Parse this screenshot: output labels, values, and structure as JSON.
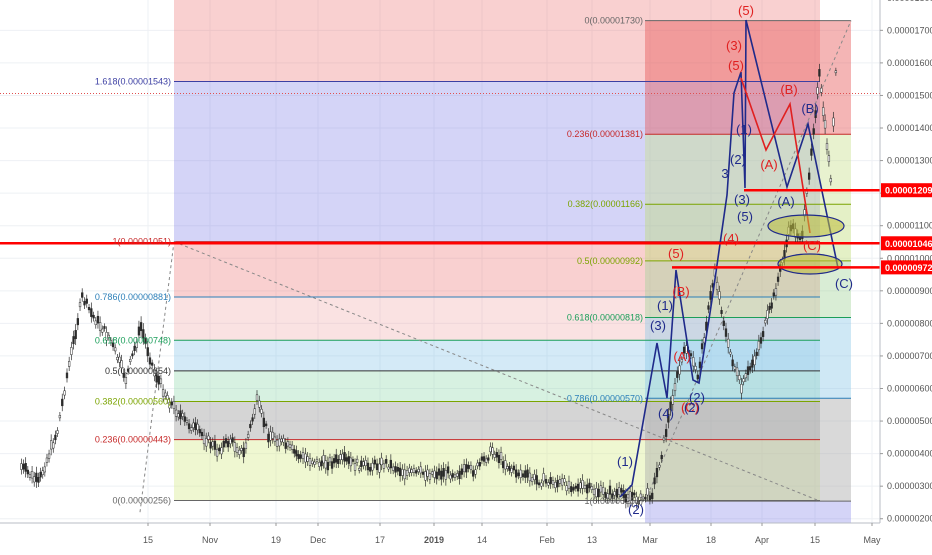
{
  "chart_data": {
    "type": "line",
    "title": "",
    "xlabel": "",
    "ylabel": "",
    "ylim": [
      1.8e-06,
      1.83e-05
    ],
    "grid": true,
    "x_ticks": [
      "15",
      "Nov",
      "19",
      "Dec",
      "17",
      "2019",
      "14",
      "Feb",
      "13",
      "Mar",
      "18",
      "Apr",
      "15",
      "May"
    ],
    "y_ticks": [
      "0.00001800",
      "0.00001700",
      "0.00001600",
      "0.00001500",
      "0.00001400",
      "0.00001300",
      "0.00001200",
      "0.00001100",
      "0.00001000",
      "0.00000900",
      "0.00000800",
      "0.00000700",
      "0.00000600",
      "0.00000500",
      "0.00000400",
      "0.00000300",
      "0.00000200"
    ],
    "price_badges": [
      {
        "label": "0.00001209",
        "value": 1.209e-05,
        "color": "#ff0000"
      },
      {
        "label": "0.00001046",
        "value": 1.046e-05,
        "color": "#ff0000"
      },
      {
        "label": "0.00000972",
        "value": 9.72e-06,
        "color": "#ff0000"
      }
    ],
    "fib_left": [
      {
        "label": "1.618(0.00001543)",
        "value": 1.543e-05,
        "color": "#3c3fa3"
      },
      {
        "label": "1(0.00001051)",
        "value": 1.051e-05,
        "color": "#c62828"
      },
      {
        "label": "0.786(0.00000881)",
        "value": 8.81e-06,
        "color": "#2b7fb8"
      },
      {
        "label": "0.618(0.00000748)",
        "value": 7.48e-06,
        "color": "#1b9e5a"
      },
      {
        "label": "0.5(0.00000654)",
        "value": 6.54e-06,
        "color": "#333333"
      },
      {
        "label": "0.382(0.00000560)",
        "value": 5.6e-06,
        "color": "#7ba400"
      },
      {
        "label": "0.236(0.00000443)",
        "value": 4.43e-06,
        "color": "#c62828"
      },
      {
        "label": "0(0.00000256)",
        "value": 2.56e-06,
        "color": "#666666"
      }
    ],
    "fib_right": [
      {
        "label": "0(0.00001730)",
        "value": 1.73e-05,
        "color": "#666666"
      },
      {
        "label": "0.236(0.00001381)",
        "value": 1.381e-05,
        "color": "#c62828"
      },
      {
        "label": "0.382(0.00001166)",
        "value": 1.166e-05,
        "color": "#7ba400"
      },
      {
        "label": "0.5(0.00000992)",
        "value": 9.92e-06,
        "color": "#7ba400"
      },
      {
        "label": "0.618(0.00000818)",
        "value": 8.18e-06,
        "color": "#1b9e5a"
      },
      {
        "label": "0.786(0.00000570)",
        "value": 5.7e-06,
        "color": "#2b7fb8"
      },
      {
        "label": "1(0.00000254)",
        "value": 2.54e-06,
        "color": "#666666"
      }
    ],
    "price_series": [
      [
        0.6,
        3.6
      ],
      [
        1.5,
        3.1
      ],
      [
        2.5,
        4.7
      ],
      [
        3,
        6.4
      ],
      [
        3.8,
        8.8
      ],
      [
        4.4,
        8.2
      ],
      [
        5.2,
        7.6
      ],
      [
        6.1,
        6.3
      ],
      [
        6.9,
        7.9
      ],
      [
        7.6,
        6.5
      ],
      [
        8.4,
        5.6
      ],
      [
        9.2,
        5.0
      ],
      [
        10.1,
        4.6
      ],
      [
        10.9,
        4.1
      ],
      [
        11.6,
        4.4
      ],
      [
        12.3,
        4.0
      ],
      [
        13,
        5.6
      ],
      [
        13.6,
        4.6
      ],
      [
        14.4,
        4.3
      ],
      [
        15.3,
        3.9
      ],
      [
        16.4,
        3.7
      ],
      [
        17.5,
        3.8
      ],
      [
        18.6,
        3.6
      ],
      [
        19.8,
        3.7
      ],
      [
        20.9,
        3.4
      ],
      [
        22.1,
        3.4
      ],
      [
        23.3,
        3.4
      ],
      [
        24.5,
        3.5
      ],
      [
        25.4,
        4.1
      ],
      [
        26.4,
        3.5
      ],
      [
        27.6,
        3.2
      ],
      [
        28.7,
        3.1
      ],
      [
        29.9,
        3.0
      ],
      [
        31.1,
        2.8
      ],
      [
        32.3,
        2.75
      ],
      [
        33.2,
        2.6
      ],
      [
        33.8,
        2.8
      ],
      [
        34.3,
        4.0
      ],
      [
        35,
        6.1
      ],
      [
        35.6,
        7.3
      ],
      [
        36.2,
        6.4
      ],
      [
        37.1,
        9.6
      ],
      [
        37.8,
        7.3
      ],
      [
        38.5,
        6.0
      ],
      [
        39.3,
        7.1
      ],
      [
        40.2,
        8.8
      ],
      [
        41.1,
        11.0
      ],
      [
        41.7,
        10.6
      ],
      [
        42.3,
        14.0
      ],
      [
        42.6,
        15.6
      ],
      [
        42.9,
        14.0
      ],
      [
        43.2,
        12.5
      ],
      [
        43.6,
        17.3
      ]
    ]
  },
  "wave_labels": [
    {
      "text": "(5)",
      "color": "#e02020"
    },
    {
      "text": "(3)",
      "color": "#e02020"
    },
    {
      "text": "(5)",
      "color": "#e02020"
    },
    {
      "text": "(B)",
      "color": "#e02020"
    },
    {
      "text": "(B)",
      "color": "#1f2a8a"
    },
    {
      "text": "(A)",
      "color": "#e02020"
    },
    {
      "text": "(A)",
      "color": "#1f2a8a"
    },
    {
      "text": "(C)",
      "color": "#e02020"
    },
    {
      "text": "(C)",
      "color": "#1f2a8a"
    },
    {
      "text": "3",
      "color": "#1f2a8a"
    },
    {
      "text": "(4)",
      "color": "#e02020"
    },
    {
      "text": "(3)",
      "color": "#1f2a8a"
    },
    {
      "text": "(5)",
      "color": "#1f2a8a"
    },
    {
      "text": "(1)",
      "color": "#1f2a8a"
    },
    {
      "text": "(2)",
      "color": "#1f2a8a"
    },
    {
      "text": "(5)",
      "color": "#e02020"
    },
    {
      "text": "(B)",
      "color": "#e02020"
    },
    {
      "text": "(A)",
      "color": "#e02020"
    },
    {
      "text": "(C)",
      "color": "#e02020"
    },
    {
      "text": "(3)",
      "color": "#1f2a8a"
    },
    {
      "text": "(4)",
      "color": "#1f2a8a"
    },
    {
      "text": "(1)",
      "color": "#1f2a8a"
    },
    {
      "text": "(2)",
      "color": "#1f2a8a"
    },
    {
      "text": "(2)",
      "color": "#1f2a8a"
    },
    {
      "text": "(1)",
      "color": "#1f2a8a"
    },
    {
      "text": "(2)",
      "color": "#1f2a8a"
    }
  ]
}
